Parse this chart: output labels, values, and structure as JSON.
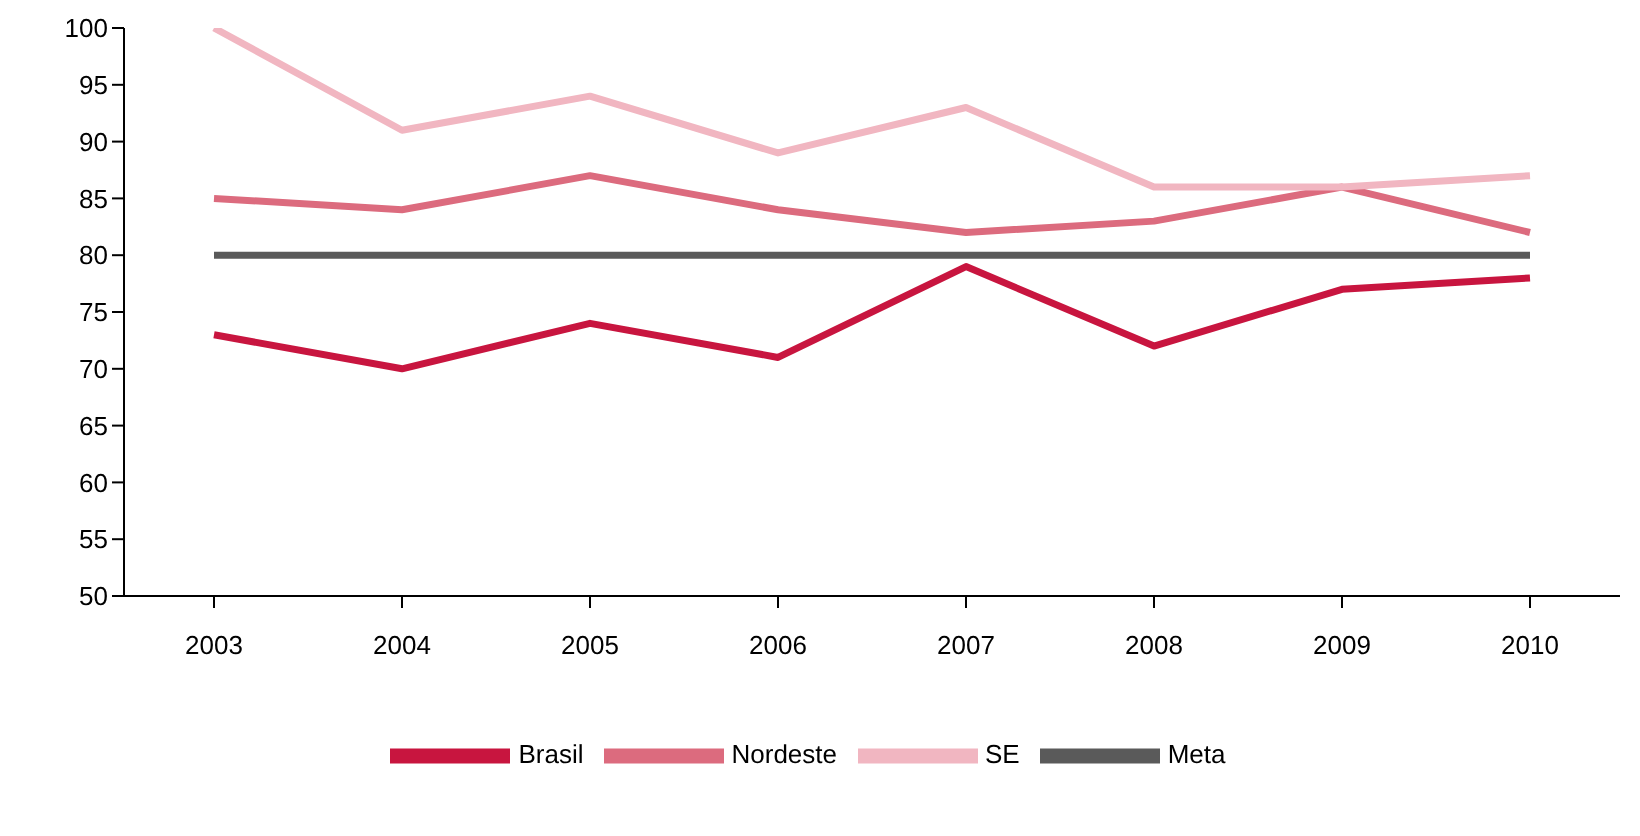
{
  "chart_data": {
    "type": "line",
    "categories": [
      "2003",
      "2004",
      "2005",
      "2006",
      "2007",
      "2008",
      "2009",
      "2010"
    ],
    "series": [
      {
        "name": "Brasil",
        "color": "#c8153f",
        "values": [
          73,
          70,
          74,
          71,
          79,
          72,
          77,
          78
        ]
      },
      {
        "name": "Nordeste",
        "color": "#dc6b7e",
        "values": [
          85,
          84,
          87,
          84,
          82,
          83,
          86,
          82
        ]
      },
      {
        "name": "SE",
        "color": "#f1b6c1",
        "values": [
          100,
          91,
          94,
          89,
          93,
          86,
          86,
          87
        ]
      },
      {
        "name": "Meta",
        "color": "#5a5a5a",
        "values": [
          80,
          80,
          80,
          80,
          80,
          80,
          80,
          80
        ]
      }
    ],
    "ylim": [
      50,
      100
    ],
    "yticks": [
      50,
      55,
      60,
      65,
      70,
      75,
      80,
      85,
      90,
      95,
      100
    ],
    "legend": "bottom"
  }
}
